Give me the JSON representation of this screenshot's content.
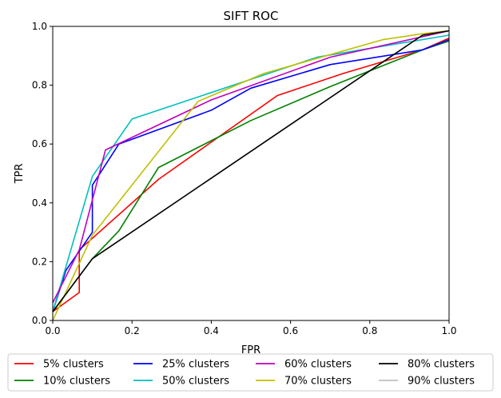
{
  "chart_data": {
    "type": "line",
    "title": "SIFT ROC",
    "xlabel": "FPR",
    "ylabel": "TPR",
    "xlim": [
      0.0,
      1.0
    ],
    "ylim": [
      0.0,
      1.0
    ],
    "xticks": [
      "0.0",
      "0.2",
      "0.4",
      "0.6",
      "0.8",
      "1.0"
    ],
    "yticks": [
      "0.0",
      "0.2",
      "0.4",
      "0.6",
      "0.8",
      "1.0"
    ],
    "grid": false,
    "legend_position": "bottom",
    "series": [
      {
        "name": "5% clusters",
        "color": "#ff0000",
        "x": [
          0.0,
          0.067,
          0.067,
          0.267,
          0.567,
          0.733,
          0.933,
          1.0
        ],
        "y": [
          0.03,
          0.095,
          0.24,
          0.48,
          0.765,
          0.84,
          0.92,
          0.96
        ]
      },
      {
        "name": "10% clusters",
        "color": "#008000",
        "x": [
          0.0,
          0.1,
          0.167,
          0.267,
          0.5,
          0.7,
          0.933,
          1.0
        ],
        "y": [
          0.03,
          0.21,
          0.305,
          0.52,
          0.68,
          0.795,
          0.92,
          0.95
        ]
      },
      {
        "name": "25% clusters",
        "color": "#0000ff",
        "x": [
          0.0,
          0.033,
          0.1,
          0.1,
          0.167,
          0.4,
          0.5,
          0.7,
          0.933,
          1.0
        ],
        "y": [
          0.03,
          0.17,
          0.3,
          0.46,
          0.6,
          0.715,
          0.79,
          0.87,
          0.92,
          0.955
        ]
      },
      {
        "name": "50% clusters",
        "color": "#00bfbf",
        "x": [
          0.0,
          0.1,
          0.2,
          0.667,
          1.0
        ],
        "y": [
          0.03,
          0.49,
          0.685,
          0.895,
          0.97
        ]
      },
      {
        "name": "60% clusters",
        "color": "#bf00bf",
        "x": [
          0.0,
          0.067,
          0.133,
          0.4,
          0.7,
          1.0
        ],
        "y": [
          0.06,
          0.24,
          0.58,
          0.75,
          0.895,
          0.985
        ]
      },
      {
        "name": "70% clusters",
        "color": "#bfbf00",
        "x": [
          0.0,
          0.1,
          0.367,
          0.533,
          0.833,
          0.933,
          1.0
        ],
        "y": [
          0.0,
          0.29,
          0.745,
          0.84,
          0.955,
          0.975,
          0.985
        ]
      },
      {
        "name": "80% clusters",
        "color": "#000000",
        "x": [
          0.0,
          0.1,
          0.933,
          1.0
        ],
        "y": [
          0.03,
          0.21,
          0.97,
          0.985
        ]
      },
      {
        "name": "90% clusters",
        "color": "#bfbfbf",
        "x": [],
        "y": []
      }
    ]
  }
}
